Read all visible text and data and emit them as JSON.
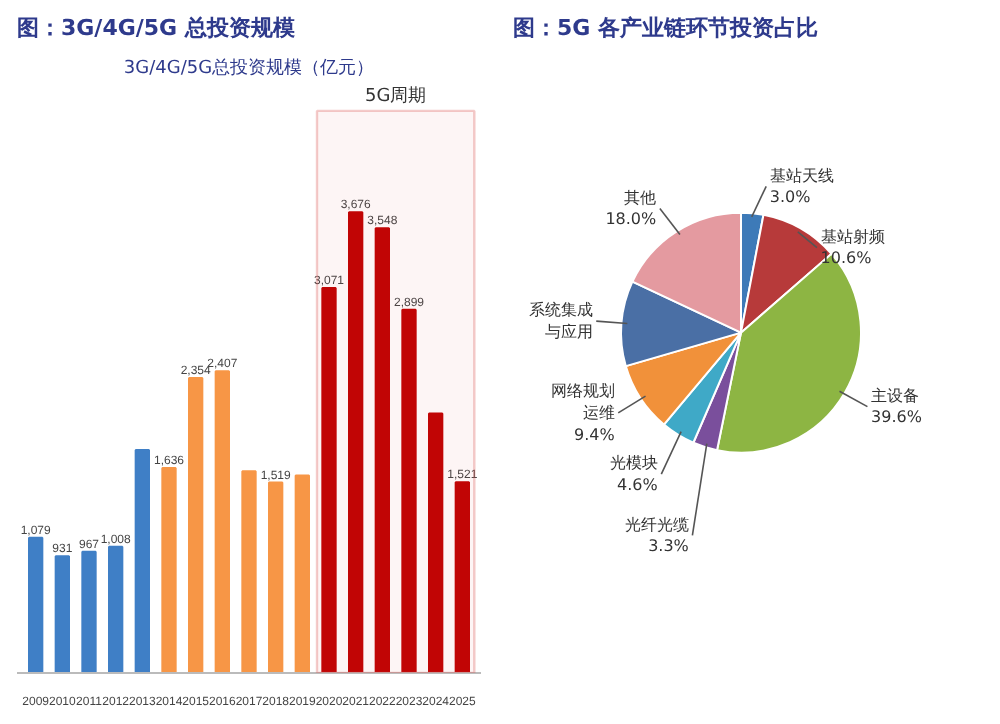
{
  "chart_data": [
    {
      "type": "bar",
      "title": "图：3G/4G/5G 总投资规模",
      "subtitle": "3G/4G/5G总投资规模（亿元）",
      "tick_labels": "x",
      "categories": [
        "2009",
        "2010",
        "2011",
        "2012",
        "2013",
        "2014",
        "2015",
        "2016",
        "2017",
        "2018",
        "2019",
        "2020",
        "2021",
        "2022",
        "2023",
        "2024",
        "2025"
      ],
      "values": [
        1079,
        931,
        967,
        1008,
        1780,
        1636,
        2354,
        2407,
        1610,
        1519,
        1575,
        3071,
        3676,
        3548,
        2899,
        2070,
        1521
      ],
      "value_labels": [
        "1,079",
        "931",
        "967",
        "1,008",
        null,
        "1,636",
        "2,354",
        "2,407",
        null,
        "1,519",
        null,
        "3,071",
        "3,676",
        "3,548",
        "2,899",
        null,
        "1,521"
      ],
      "colors": [
        "#3f7fc6",
        "#3f7fc6",
        "#3f7fc6",
        "#3f7fc6",
        "#3f7fc6",
        "#f79646",
        "#f79646",
        "#f79646",
        "#f79646",
        "#f79646",
        "#f79646",
        "#c00000",
        "#c00000",
        "#c00000",
        "#c00000",
        "#c00000",
        "#c00000"
      ],
      "bands": [
        {
          "axis": "x",
          "from": "2020",
          "to": "2025",
          "label": "5G周期",
          "color": "#d9534f"
        }
      ],
      "grid": false,
      "legend": false
    },
    {
      "type": "pie",
      "title": "图：5G 各产业链环节投资占比",
      "categories": [
        "基站天线",
        "基站射频",
        "主设备",
        "光纤光缆",
        "光模块",
        "网络规划运维",
        "系统集成与应用",
        "其他"
      ],
      "values": [
        3.0,
        10.6,
        39.6,
        3.3,
        4.6,
        9.4,
        11.5,
        18.0
      ],
      "value_labels": [
        "3.0%",
        "10.6%",
        "39.6%",
        "3.3%",
        "4.6%",
        "9.4%",
        null,
        "18.0%"
      ],
      "colors": [
        "#3d7ab8",
        "#b73a3a",
        "#8db543",
        "#7a4f9c",
        "#3fa9c7",
        "#f1913a",
        "#4a6fa5",
        "#e49aa0"
      ],
      "legend": false
    }
  ]
}
